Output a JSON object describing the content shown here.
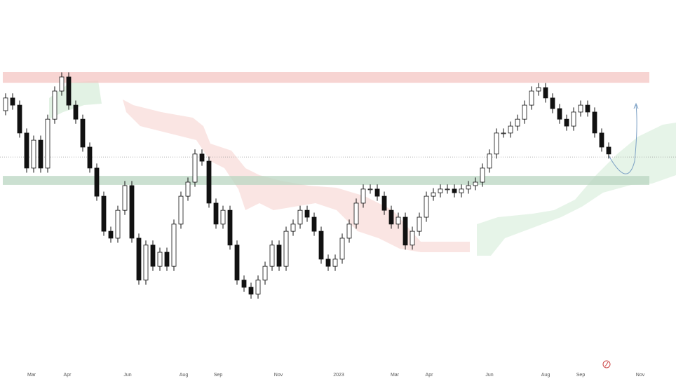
{
  "chart_data": {
    "type": "candlestick",
    "xtick_labels": [
      "Mar",
      "Apr",
      "Jun",
      "Aug",
      "Sep",
      "Nov",
      "2023",
      "Mar",
      "Apr",
      "Jun",
      "Aug",
      "Sep",
      "Nov"
    ],
    "ylim": [
      3380,
      4960
    ],
    "open": [
      4480,
      4535,
      4504,
      4383,
      4231,
      4352,
      4231,
      4443,
      4565,
      4626,
      4504,
      4443,
      4322,
      4231,
      4109,
      3957,
      3927,
      4048,
      4155,
      3927,
      3745,
      3897,
      3805,
      3866,
      3805,
      3988,
      4109,
      4170,
      4292,
      4261,
      4079,
      3988,
      4048,
      3897,
      3745,
      3714,
      3684,
      3745,
      3805,
      3897,
      3805,
      3957,
      3988,
      4048,
      4018,
      3957,
      3836,
      3805,
      3836,
      3927,
      3988,
      4079,
      4140,
      4140,
      4109,
      4048,
      3988,
      4018,
      3897,
      3957,
      4018,
      4109,
      4124,
      4140,
      4140,
      4124,
      4140,
      4155,
      4170,
      4231,
      4292,
      4383,
      4383,
      4413,
      4443,
      4504,
      4565,
      4580,
      4535,
      4489,
      4443,
      4413,
      4474,
      4504,
      4474,
      4383,
      4322
    ],
    "high": [
      4555,
      4555,
      4524,
      4403,
      4372,
      4372,
      4463,
      4585,
      4646,
      4646,
      4524,
      4463,
      4342,
      4251,
      4129,
      3977,
      4068,
      4175,
      4175,
      3947,
      3917,
      3917,
      3886,
      3886,
      4008,
      4129,
      4190,
      4312,
      4312,
      4281,
      4099,
      4068,
      4068,
      3917,
      3765,
      3734,
      3765,
      3825,
      3917,
      3917,
      3977,
      4008,
      4068,
      4068,
      4038,
      3977,
      3856,
      3856,
      3947,
      4008,
      4099,
      4160,
      4160,
      4160,
      4129,
      4068,
      4038,
      4038,
      3977,
      4038,
      4129,
      4144,
      4160,
      4160,
      4160,
      4160,
      4175,
      4190,
      4251,
      4312,
      4403,
      4403,
      4433,
      4463,
      4524,
      4585,
      4600,
      4600,
      4555,
      4509,
      4463,
      4494,
      4524,
      4524,
      4494,
      4403,
      4342
    ],
    "low": [
      4460,
      4484,
      4363,
      4211,
      4211,
      4211,
      4211,
      4423,
      4545,
      4484,
      4423,
      4302,
      4211,
      4089,
      3937,
      3907,
      3907,
      4028,
      3907,
      3725,
      3725,
      3785,
      3785,
      3785,
      3785,
      3968,
      4089,
      4150,
      4241,
      4059,
      3968,
      3968,
      3877,
      3725,
      3694,
      3664,
      3664,
      3725,
      3785,
      3785,
      3785,
      3937,
      3968,
      3998,
      3937,
      3816,
      3785,
      3785,
      3816,
      3907,
      3968,
      4059,
      4120,
      4089,
      4028,
      3968,
      3968,
      3877,
      3877,
      3937,
      3998,
      4089,
      4104,
      4120,
      4104,
      4104,
      4120,
      4135,
      4150,
      4211,
      4272,
      4363,
      4363,
      4393,
      4423,
      4484,
      4545,
      4515,
      4469,
      4423,
      4393,
      4393,
      4454,
      4454,
      4363,
      4302,
      4272
    ],
    "close": [
      4535,
      4504,
      4383,
      4231,
      4352,
      4231,
      4443,
      4565,
      4626,
      4504,
      4443,
      4322,
      4231,
      4109,
      3957,
      3927,
      4048,
      4155,
      3927,
      3745,
      3897,
      3805,
      3866,
      3805,
      3988,
      4109,
      4170,
      4292,
      4261,
      4079,
      3988,
      4048,
      3897,
      3745,
      3714,
      3684,
      3745,
      3805,
      3897,
      3805,
      3957,
      3988,
      4048,
      4018,
      3957,
      3836,
      3805,
      3836,
      3927,
      3988,
      4079,
      4140,
      4140,
      4109,
      4048,
      3988,
      4018,
      3897,
      3957,
      4018,
      4109,
      4124,
      4140,
      4140,
      4124,
      4140,
      4155,
      4170,
      4231,
      4292,
      4383,
      4383,
      4413,
      4443,
      4504,
      4565,
      4580,
      4535,
      4489,
      4443,
      4413,
      4474,
      4504,
      4474,
      4383,
      4322,
      4292
    ],
    "resistance_zone": [
      4601,
      4647
    ],
    "support_zone": [
      4158,
      4197
    ],
    "reference_line": 4279
  }
}
